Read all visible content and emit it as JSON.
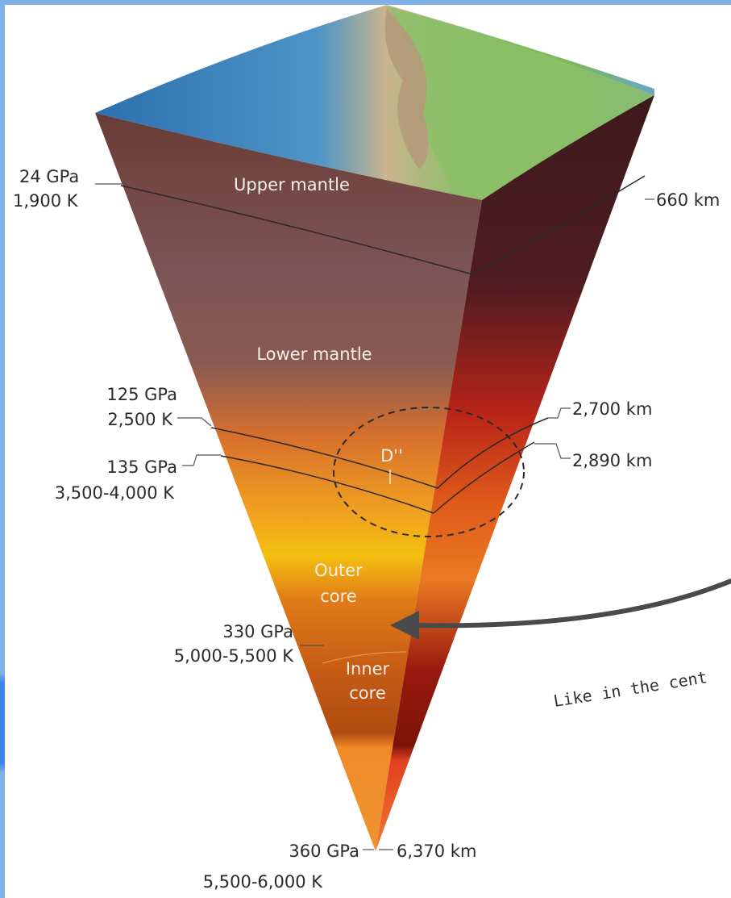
{
  "layers": {
    "upper_mantle": "Upper mantle",
    "lower_mantle": "Lower mantle",
    "d_double_prime": "D''",
    "outer_core_line1": "Outer",
    "outer_core_line2": "core",
    "inner_core_line1": "Inner",
    "inner_core_line2": "core"
  },
  "left_labels": {
    "l1_pressure": "24 GPa",
    "l1_temp": "1,900 K",
    "l2_pressure": "125 GPa",
    "l2_temp": "2,500 K",
    "l3_pressure": "135 GPa",
    "l3_temp": "3,500-4,000 K",
    "l4_pressure": "330 GPa",
    "l4_temp": "5,000-5,500 K",
    "l5_pressure": "360 GPa",
    "l5_temp": "5,500-6,000 K"
  },
  "right_labels": {
    "depth_660": "660 km",
    "depth_2700": "2,700 km",
    "depth_2890": "2,890 km",
    "depth_6370": "6,370 km"
  },
  "annotation": {
    "note": "Like in the cent"
  },
  "colors": {
    "accent_frame": "#7fb0e6",
    "arrow": "#4a4a4a"
  }
}
